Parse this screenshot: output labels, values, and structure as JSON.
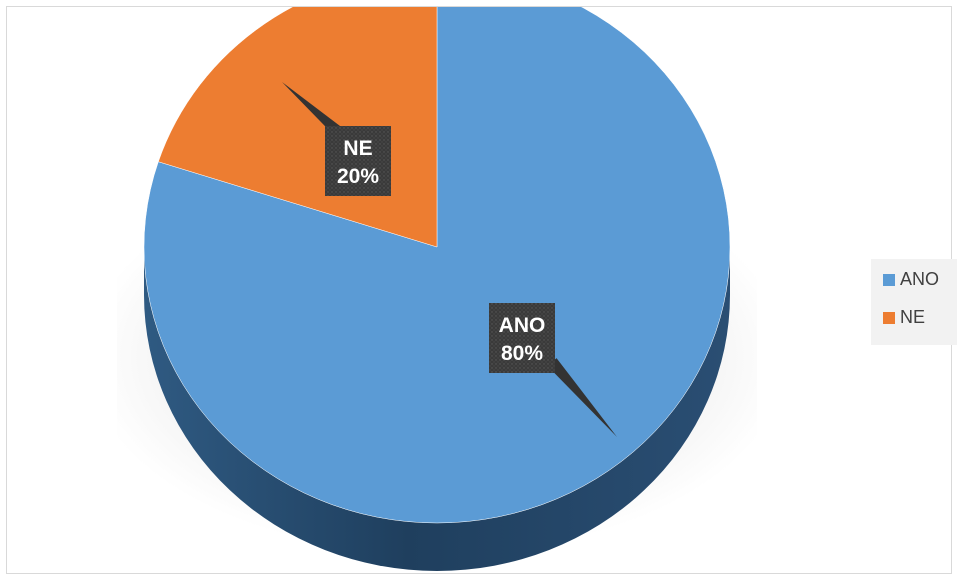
{
  "chart_data": {
    "type": "pie",
    "title": "",
    "categories": [
      "ANO",
      "NE"
    ],
    "values": [
      80,
      20
    ],
    "colors": [
      "#5b9bd5",
      "#ed7d31"
    ],
    "data_labels": [
      {
        "category": "ANO",
        "percent": "80%"
      },
      {
        "category": "NE",
        "percent": "20%"
      }
    ],
    "legend": {
      "position": "right",
      "items": [
        {
          "label": "ANO",
          "color": "#5b9bd5"
        },
        {
          "label": "NE",
          "color": "#ed7d31"
        }
      ]
    },
    "style": "3d-pie"
  }
}
